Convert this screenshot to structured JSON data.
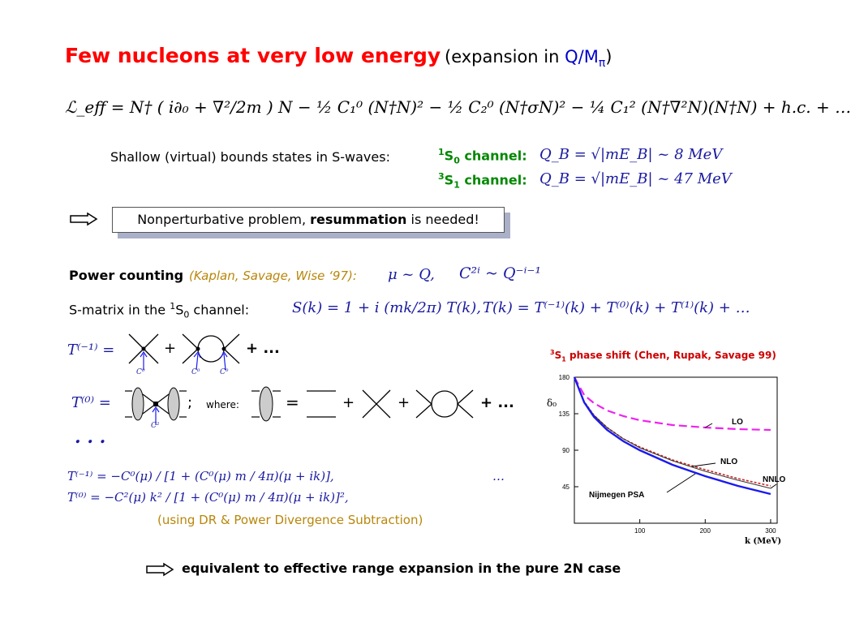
{
  "title": "Few nucleons at very low energy",
  "subtitle": {
    "pre": "(expansion in ",
    "q": "Q/M",
    "pi": "π",
    "post": ")"
  },
  "lagrangian": "ℒ_eff = N† ( i∂₀ + ∇²/2m ) N − ½ C₁⁰ (N†N)² − ½ C₂⁰ (N†σN)² − ¼ C₁² (N†∇²N)(N†N) + h.c. + …",
  "shallow": {
    "label": "Shallow (virtual) bounds states in S-waves:",
    "ch1_sup": "1",
    "ch1_name": "S",
    "ch1_sub": "0",
    "ch1_word": " channel:",
    "ch1_eq": "Q_B = √|mE_B| ~ 8 MeV",
    "ch2_sup": "3",
    "ch2_name": "S",
    "ch2_sub": "1",
    "ch2_word": " channel:",
    "ch2_eq": "Q_B = √|mE_B| ~ 47 MeV"
  },
  "box": {
    "pre": "Nonperturbative problem, ",
    "bold": "resummation",
    "post": " is needed!"
  },
  "power": {
    "label": "Power counting",
    "ref": "(Kaplan, Savage, Wise ‘97):",
    "eq1": "μ ~ Q,",
    "eq2": "C²ⁱ ~ Q⁻ⁱ⁻¹"
  },
  "smatrix": {
    "label_pre": "S-matrix in the ",
    "sup": "1",
    "name": "S",
    "sub": "0",
    "label_post": " channel:",
    "eq1": "S(k) = 1 + i (mk/2π) T(k),",
    "eq2": "T(k) = T⁽⁻¹⁾(k) + T⁽⁰⁾(k) + T⁽¹⁾(k) + …"
  },
  "diagrams": {
    "t_minus1": "T⁽⁻¹⁾ =",
    "t0": "T⁽⁰⁾ =",
    "plus": "+",
    "plus_dots": "+ ...",
    "semicolon": ";",
    "where": "where:",
    "equals": "=",
    "c0": "C⁰",
    "c2": "C²",
    "ellipsis": ". . ."
  },
  "formulas": {
    "f1": "T⁽⁻¹⁾ = −C⁰(μ) / [1 + (C⁰(μ) m / 4π)(μ + ik)],",
    "f2": "T⁽⁰⁾ = −C²(μ) k² / [1 + (C⁰(μ) m / 4π)(μ + ik)]²,",
    "dots": "…"
  },
  "dr_note": "(using DR & Power Divergence Subtraction)",
  "conclusion": "equivalent to effective range expansion in the pure 2N case",
  "chart_data": {
    "type": "line",
    "title_sup": "3",
    "title_name": "S",
    "title_sub": "1",
    "title_rest": " phase shift (Chen, Rupak, Savage 99)",
    "ylabel": "δ₀",
    "xlabel": "k (MeV)",
    "xlim": [
      0,
      310
    ],
    "ylim": [
      0,
      180
    ],
    "xticks": [
      "100",
      "200",
      "300"
    ],
    "yticks": [
      "45",
      "90",
      "135",
      "180"
    ],
    "series": [
      {
        "name": "LO",
        "color": "#ee22ee",
        "dash": true,
        "x": [
          0,
          15,
          30,
          50,
          75,
          100,
          150,
          200,
          250,
          300
        ],
        "y": [
          180,
          158,
          148,
          139,
          132,
          127,
          121,
          118,
          116,
          115
        ]
      },
      {
        "name": "NLO",
        "color": "#cc2222",
        "dash": true,
        "x": [
          0,
          15,
          30,
          50,
          75,
          100,
          150,
          200,
          250,
          300
        ],
        "y": [
          180,
          150,
          133,
          118,
          104,
          94,
          78,
          66,
          55,
          46
        ]
      },
      {
        "name": "NNLO",
        "color": "#333333",
        "dash": false,
        "x": [
          0,
          15,
          30,
          50,
          75,
          100,
          150,
          200,
          250,
          300
        ],
        "y": [
          180,
          150,
          133,
          118,
          104,
          93,
          77,
          64,
          53,
          43
        ]
      },
      {
        "name": "Nijmegen PSA",
        "color": "#1a1aee",
        "dash": false,
        "x": [
          0,
          15,
          30,
          50,
          75,
          100,
          150,
          200,
          250,
          300
        ],
        "y": [
          180,
          149,
          131,
          115,
          101,
          90,
          72,
          58,
          46,
          36
        ]
      }
    ]
  }
}
